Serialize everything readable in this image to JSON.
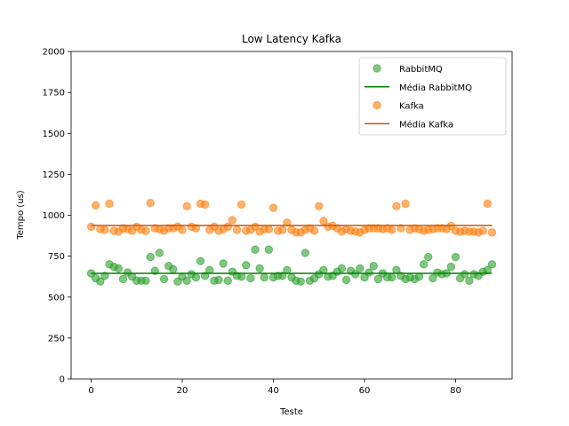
{
  "chart_data": {
    "type": "scatter",
    "title": "Low Latency Kafka",
    "xlabel": "Teste",
    "ylabel": "Tempo (us)",
    "xlim": [
      -4.4,
      92.4
    ],
    "ylim": [
      0,
      2000
    ],
    "xticks": [
      0,
      20,
      40,
      60,
      80
    ],
    "yticks": [
      0,
      250,
      500,
      750,
      1000,
      1250,
      1500,
      1750,
      2000
    ],
    "legend_position": "top-right",
    "grid": false,
    "series": [
      {
        "name": "RabbitMQ",
        "kind": "scatter",
        "color": "#2ca02c",
        "x": [
          0,
          1,
          2,
          3,
          4,
          5,
          6,
          7,
          8,
          9,
          10,
          11,
          12,
          13,
          14,
          15,
          16,
          17,
          18,
          19,
          20,
          21,
          22,
          23,
          24,
          25,
          26,
          27,
          28,
          29,
          30,
          31,
          32,
          33,
          34,
          35,
          36,
          37,
          38,
          39,
          40,
          41,
          42,
          43,
          44,
          45,
          46,
          47,
          48,
          49,
          50,
          51,
          52,
          53,
          54,
          55,
          56,
          57,
          58,
          59,
          60,
          61,
          62,
          63,
          64,
          65,
          66,
          67,
          68,
          69,
          70,
          71,
          72,
          73,
          74,
          75,
          76,
          77,
          78,
          79,
          80,
          81,
          82,
          83,
          84,
          85,
          86,
          87,
          88
        ],
        "y": [
          645,
          615,
          595,
          630,
          700,
          685,
          675,
          610,
          650,
          625,
          600,
          600,
          600,
          745,
          660,
          770,
          610,
          690,
          670,
          595,
          625,
          600,
          640,
          620,
          720,
          630,
          665,
          600,
          605,
          705,
          600,
          655,
          630,
          625,
          695,
          615,
          790,
          675,
          620,
          790,
          620,
          630,
          630,
          665,
          620,
          600,
          595,
          770,
          600,
          615,
          640,
          665,
          625,
          630,
          655,
          675,
          605,
          660,
          640,
          675,
          620,
          650,
          690,
          610,
          645,
          620,
          620,
          665,
          630,
          610,
          620,
          610,
          625,
          700,
          745,
          615,
          650,
          640,
          645,
          685,
          745,
          615,
          640,
          600,
          640,
          630,
          655,
          665,
          700
        ]
      },
      {
        "name": "Média RabbitMQ",
        "kind": "line",
        "color": "#008000",
        "x": [
          0,
          88
        ],
        "y": [
          645,
          645
        ]
      },
      {
        "name": "Kafka",
        "kind": "scatter",
        "color": "#ff7f0e",
        "x": [
          0,
          1,
          2,
          3,
          4,
          5,
          6,
          7,
          8,
          9,
          10,
          11,
          12,
          13,
          14,
          15,
          16,
          17,
          18,
          19,
          20,
          21,
          22,
          23,
          24,
          25,
          26,
          27,
          28,
          29,
          30,
          31,
          32,
          33,
          34,
          35,
          36,
          37,
          38,
          39,
          40,
          41,
          42,
          43,
          44,
          45,
          46,
          47,
          48,
          49,
          50,
          51,
          52,
          53,
          54,
          55,
          56,
          57,
          58,
          59,
          60,
          61,
          62,
          63,
          64,
          65,
          66,
          67,
          68,
          69,
          70,
          71,
          72,
          73,
          74,
          75,
          76,
          77,
          78,
          79,
          80,
          81,
          82,
          83,
          84,
          85,
          86,
          87,
          88
        ],
        "y": [
          930,
          1060,
          915,
          910,
          1070,
          905,
          900,
          920,
          915,
          905,
          930,
          910,
          905,
          1075,
          920,
          915,
          905,
          920,
          920,
          930,
          910,
          1055,
          930,
          920,
          1070,
          1065,
          910,
          930,
          905,
          915,
          930,
          970,
          910,
          1065,
          905,
          910,
          930,
          900,
          915,
          915,
          1045,
          905,
          910,
          955,
          910,
          895,
          895,
          910,
          920,
          905,
          1055,
          965,
          930,
          935,
          920,
          900,
          915,
          905,
          900,
          895,
          910,
          920,
          920,
          920,
          915,
          920,
          910,
          1055,
          920,
          1070,
          910,
          920,
          915,
          905,
          910,
          915,
          920,
          920,
          915,
          935,
          905,
          900,
          905,
          900,
          900,
          895,
          905,
          1070,
          895
        ]
      },
      {
        "name": "Média Kafka",
        "kind": "line",
        "color": "#cc5500",
        "x": [
          0,
          88
        ],
        "y": [
          937,
          937
        ]
      }
    ]
  }
}
